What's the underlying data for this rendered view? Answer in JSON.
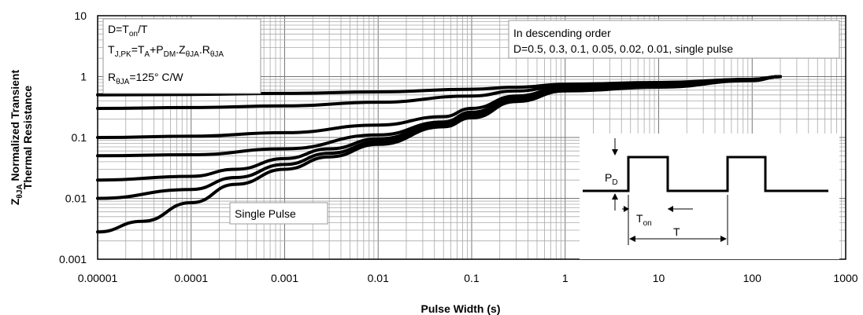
{
  "chart_data": {
    "type": "line",
    "xscale": "log",
    "yscale": "log",
    "xlim": [
      1e-05,
      1000
    ],
    "ylim": [
      0.001,
      10
    ],
    "grid": true,
    "xlabel": "Pulse Width (s)",
    "ylabel_parts": {
      "z": "Z",
      "z_sub": "θJA",
      "line1": " Normalized Transient",
      "line2": "Thermal Resistance"
    },
    "x_tick_labels": [
      "0.00001",
      "0.0001",
      "0.001",
      "0.01",
      "0.1",
      "1",
      "10",
      "100",
      "1000"
    ],
    "x_ticks": [
      1e-05,
      0.0001,
      0.001,
      0.01,
      0.1,
      1,
      10,
      100,
      1000
    ],
    "y_tick_labels": [
      "0.001",
      "0.01",
      "0.1",
      "1",
      "10"
    ],
    "y_ticks": [
      0.001,
      0.01,
      0.1,
      1,
      10
    ],
    "series": [
      {
        "x": [
          1e-05,
          0.0001,
          0.001,
          0.01,
          0.1,
          0.3,
          1,
          10,
          100,
          200
        ],
        "y": [
          0.5,
          0.51,
          0.53,
          0.56,
          0.62,
          0.67,
          0.75,
          0.8,
          0.9,
          1.0
        ]
      },
      {
        "x": [
          1e-05,
          0.0001,
          0.001,
          0.01,
          0.1,
          0.3,
          1,
          10,
          100,
          200
        ],
        "y": [
          0.3,
          0.31,
          0.33,
          0.38,
          0.48,
          0.58,
          0.72,
          0.78,
          0.9,
          1.0
        ]
      },
      {
        "x": [
          1e-05,
          0.0001,
          0.001,
          0.01,
          0.05,
          0.1,
          0.3,
          1,
          10,
          100,
          200
        ],
        "y": [
          0.1,
          0.105,
          0.12,
          0.16,
          0.22,
          0.3,
          0.48,
          0.68,
          0.75,
          0.88,
          1.0
        ]
      },
      {
        "x": [
          1e-05,
          0.0001,
          0.001,
          0.01,
          0.05,
          0.1,
          0.3,
          1,
          10,
          100,
          200
        ],
        "y": [
          0.05,
          0.052,
          0.065,
          0.11,
          0.18,
          0.26,
          0.45,
          0.65,
          0.72,
          0.88,
          1.0
        ]
      },
      {
        "x": [
          1e-05,
          0.0001,
          0.0003,
          0.001,
          0.003,
          0.01,
          0.05,
          0.1,
          0.3,
          1,
          10,
          100,
          200
        ],
        "y": [
          0.02,
          0.023,
          0.03,
          0.045,
          0.065,
          0.095,
          0.17,
          0.24,
          0.42,
          0.62,
          0.7,
          0.87,
          1.0
        ]
      },
      {
        "x": [
          1e-05,
          0.0001,
          0.0003,
          0.001,
          0.003,
          0.01,
          0.05,
          0.1,
          0.3,
          1,
          10,
          100,
          200
        ],
        "y": [
          0.01,
          0.014,
          0.022,
          0.036,
          0.055,
          0.085,
          0.16,
          0.23,
          0.41,
          0.61,
          0.69,
          0.87,
          1.0
        ]
      },
      {
        "x": [
          1e-05,
          3e-05,
          0.0001,
          0.0003,
          0.001,
          0.003,
          0.01,
          0.05,
          0.1,
          0.3,
          1,
          10,
          100,
          200
        ],
        "y": [
          0.0028,
          0.0042,
          0.0085,
          0.017,
          0.03,
          0.048,
          0.077,
          0.15,
          0.21,
          0.39,
          0.58,
          0.67,
          0.86,
          1.0
        ]
      }
    ],
    "annotations": {
      "box1": {
        "line1": {
          "a": "D=T",
          "a_sub": "on",
          "b": "/T"
        },
        "line2": {
          "t1": "T",
          "t1_sub": "J,PK",
          "t2": "=T",
          "t2_sub": "A",
          "t3": "+P",
          "t3_sub": "DM",
          "t4": ".Z",
          "t4_sub": "θJA",
          "t5": ".R",
          "t5_sub": "θJA"
        },
        "line3": {
          "r": "R",
          "r_sub": "θJA",
          "val": "=125°  C/W"
        }
      },
      "box2": {
        "line1": "In descending order",
        "line2": "D=0.5, 0.3, 0.1, 0.05, 0.02, 0.01, single pulse"
      },
      "single_pulse_label": "Single Pulse",
      "inset": {
        "pd": "P",
        "pd_sub": "D",
        "ton": "T",
        "ton_sub": "on",
        "t": "T"
      }
    }
  }
}
